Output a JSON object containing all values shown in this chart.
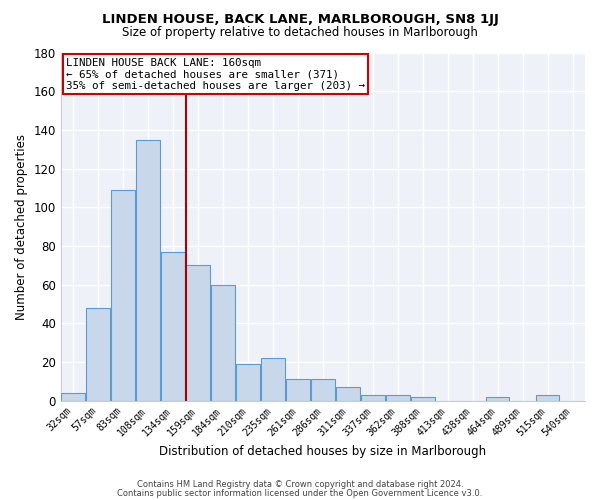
{
  "title": "LINDEN HOUSE, BACK LANE, MARLBOROUGH, SN8 1JJ",
  "subtitle": "Size of property relative to detached houses in Marlborough",
  "xlabel": "Distribution of detached houses by size in Marlborough",
  "ylabel": "Number of detached properties",
  "bin_labels": [
    "32sqm",
    "57sqm",
    "83sqm",
    "108sqm",
    "134sqm",
    "159sqm",
    "184sqm",
    "210sqm",
    "235sqm",
    "261sqm",
    "286sqm",
    "311sqm",
    "337sqm",
    "362sqm",
    "388sqm",
    "413sqm",
    "438sqm",
    "464sqm",
    "489sqm",
    "515sqm",
    "540sqm"
  ],
  "bar_heights": [
    4,
    48,
    109,
    135,
    77,
    70,
    60,
    19,
    22,
    11,
    11,
    7,
    3,
    3,
    2,
    0,
    0,
    2,
    0,
    3,
    0
  ],
  "bar_color": "#c8d8ea",
  "bar_edge_color": "#5b9bd5",
  "background_color": "#eef2f8",
  "grid_color": "#ffffff",
  "annotation_text": "LINDEN HOUSE BACK LANE: 160sqm\n← 65% of detached houses are smaller (371)\n35% of semi-detached houses are larger (203) →",
  "vline_x_index": 5,
  "vline_color": "#aa0000",
  "box_color": "#cc0000",
  "ylim": [
    0,
    180
  ],
  "yticks": [
    0,
    20,
    40,
    60,
    80,
    100,
    120,
    140,
    160,
    180
  ],
  "footer1": "Contains HM Land Registry data © Crown copyright and database right 2024.",
  "footer2": "Contains public sector information licensed under the Open Government Licence v3.0."
}
